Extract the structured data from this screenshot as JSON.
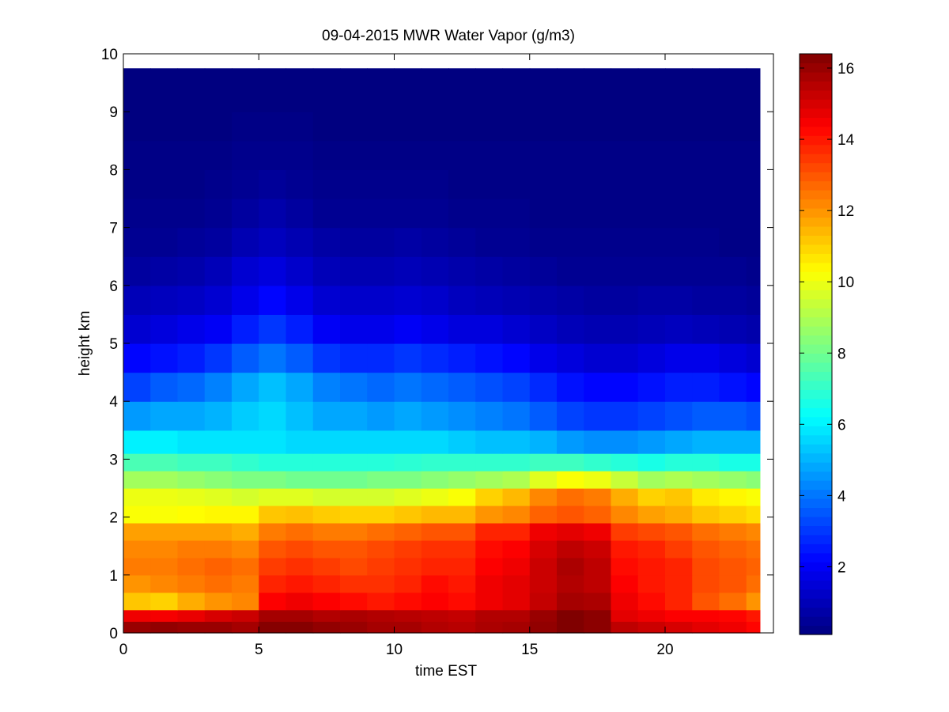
{
  "chart_data": {
    "type": "heatmap",
    "title": "09-04-2015 MWR Water Vapor (g/m3)",
    "xlabel": "time EST",
    "ylabel": "height km",
    "xlim": [
      0,
      24
    ],
    "ylim": [
      0,
      10
    ],
    "x_ticks": [
      0,
      5,
      10,
      15,
      20
    ],
    "y_ticks": [
      0,
      1,
      2,
      3,
      4,
      5,
      6,
      7,
      8,
      9,
      10
    ],
    "colorbar": {
      "clim": [
        0.1,
        16.4
      ],
      "ticks": [
        2,
        4,
        6,
        8,
        10,
        12,
        14,
        16
      ],
      "colormap": "jet"
    },
    "time_start": 0,
    "time_step": 1,
    "time_count": 24,
    "time_end": 23.5,
    "height_max": 9.75,
    "grid": false,
    "profiles": [
      {
        "height": 0.0,
        "values": [
          16.0,
          16.1,
          16.0,
          16.0,
          15.8,
          16.3,
          16.3,
          16.1,
          16.0,
          15.8,
          15.8,
          15.6,
          15.5,
          15.7,
          15.8,
          16.1,
          16.4,
          16.2,
          15.4,
          15.2,
          15.0,
          14.8,
          14.6,
          14.3
        ]
      },
      {
        "height": 0.2,
        "values": [
          14.6,
          14.5,
          14.7,
          15.0,
          15.2,
          15.8,
          15.8,
          15.6,
          15.7,
          15.6,
          15.5,
          15.4,
          15.3,
          15.6,
          15.6,
          16.0,
          16.4,
          16.2,
          14.8,
          14.6,
          14.4,
          14.4,
          14.3,
          14.0
        ]
      },
      {
        "height": 0.4,
        "values": [
          11.2,
          11.0,
          11.6,
          12.0,
          12.2,
          14.4,
          14.6,
          14.4,
          14.2,
          14.0,
          14.2,
          14.4,
          14.2,
          14.6,
          14.8,
          15.3,
          15.8,
          15.7,
          14.6,
          14.2,
          13.8,
          13.0,
          12.6,
          12.0
        ]
      },
      {
        "height": 0.7,
        "values": [
          12.0,
          12.2,
          12.4,
          12.6,
          12.4,
          13.8,
          14.0,
          13.8,
          13.6,
          13.6,
          13.8,
          14.2,
          14.0,
          14.6,
          14.8,
          15.2,
          15.6,
          15.4,
          14.4,
          14.0,
          13.8,
          13.2,
          13.0,
          12.6
        ]
      },
      {
        "height": 1.0,
        "values": [
          12.4,
          12.4,
          12.6,
          12.8,
          12.6,
          13.4,
          13.6,
          13.4,
          13.2,
          13.4,
          13.6,
          13.8,
          13.8,
          14.4,
          14.6,
          15.2,
          15.7,
          15.4,
          14.2,
          14.0,
          13.8,
          13.2,
          13.0,
          12.8
        ]
      },
      {
        "height": 1.3,
        "values": [
          12.2,
          12.2,
          12.4,
          12.4,
          12.2,
          13.0,
          13.2,
          13.0,
          13.0,
          13.2,
          13.4,
          13.6,
          13.6,
          14.2,
          14.4,
          15.0,
          15.4,
          15.2,
          14.0,
          13.8,
          13.4,
          13.0,
          12.8,
          12.6
        ]
      },
      {
        "height": 1.6,
        "values": [
          11.8,
          11.8,
          11.8,
          11.8,
          11.6,
          12.4,
          12.6,
          12.4,
          12.4,
          12.6,
          12.8,
          13.0,
          13.0,
          13.8,
          13.8,
          14.6,
          14.8,
          14.6,
          13.4,
          13.2,
          13.0,
          12.6,
          12.4,
          12.2
        ]
      },
      {
        "height": 1.9,
        "values": [
          10.2,
          10.2,
          10.3,
          10.4,
          10.4,
          11.2,
          11.3,
          11.1,
          11.0,
          11.0,
          11.2,
          11.4,
          11.4,
          12.0,
          12.2,
          12.8,
          13.0,
          12.8,
          12.2,
          11.8,
          11.6,
          11.2,
          11.0,
          10.8
        ]
      },
      {
        "height": 2.2,
        "values": [
          10.0,
          10.0,
          9.9,
          9.8,
          9.6,
          9.8,
          9.8,
          9.6,
          9.6,
          9.6,
          9.8,
          10.0,
          10.2,
          11.0,
          11.4,
          12.2,
          12.6,
          12.4,
          11.6,
          11.0,
          11.2,
          10.6,
          10.4,
          10.2
        ]
      },
      {
        "height": 2.5,
        "values": [
          8.8,
          8.8,
          8.6,
          8.4,
          8.2,
          8.2,
          8.0,
          8.0,
          8.0,
          8.2,
          8.2,
          8.4,
          8.6,
          8.8,
          9.0,
          9.8,
          10.2,
          10.0,
          9.4,
          8.8,
          9.0,
          8.8,
          8.6,
          8.4
        ]
      },
      {
        "height": 2.8,
        "values": [
          7.4,
          7.4,
          7.2,
          7.2,
          7.0,
          6.8,
          6.8,
          6.8,
          6.8,
          6.8,
          6.9,
          7.0,
          7.0,
          7.0,
          7.0,
          7.2,
          7.2,
          7.0,
          6.8,
          6.6,
          6.8,
          6.8,
          6.6,
          6.6
        ]
      },
      {
        "height": 3.1,
        "values": [
          6.0,
          6.0,
          5.8,
          5.8,
          5.8,
          5.8,
          5.6,
          5.6,
          5.6,
          5.6,
          5.6,
          5.6,
          5.4,
          5.2,
          5.2,
          5.0,
          4.6,
          4.4,
          4.4,
          4.6,
          4.8,
          5.0,
          5.0,
          5.0
        ]
      },
      {
        "height": 3.5,
        "values": [
          4.6,
          4.8,
          4.8,
          5.0,
          5.4,
          5.6,
          5.2,
          4.8,
          4.8,
          4.6,
          4.8,
          4.6,
          4.4,
          4.2,
          4.0,
          3.6,
          3.2,
          3.0,
          3.0,
          3.2,
          3.4,
          3.6,
          3.6,
          3.4
        ]
      },
      {
        "height": 4.0,
        "values": [
          3.2,
          3.6,
          3.8,
          4.2,
          4.8,
          5.2,
          4.8,
          4.2,
          4.0,
          3.8,
          4.0,
          3.8,
          3.6,
          3.4,
          3.2,
          2.8,
          2.4,
          2.2,
          2.2,
          2.4,
          2.6,
          2.6,
          2.4,
          2.2
        ]
      },
      {
        "height": 4.5,
        "values": [
          2.2,
          2.4,
          2.6,
          3.0,
          3.6,
          4.0,
          3.6,
          3.0,
          2.8,
          2.8,
          3.0,
          2.8,
          2.6,
          2.4,
          2.2,
          1.8,
          1.6,
          1.4,
          1.4,
          1.6,
          1.8,
          1.8,
          1.6,
          1.4
        ]
      },
      {
        "height": 5.0,
        "values": [
          1.4,
          1.6,
          1.8,
          2.0,
          2.6,
          3.0,
          2.6,
          2.0,
          1.8,
          1.8,
          2.0,
          1.8,
          1.6,
          1.6,
          1.4,
          1.2,
          1.0,
          0.9,
          0.9,
          1.0,
          1.1,
          1.0,
          0.9,
          0.8
        ]
      },
      {
        "height": 5.5,
        "values": [
          1.0,
          1.1,
          1.2,
          1.4,
          1.8,
          2.2,
          1.8,
          1.4,
          1.3,
          1.3,
          1.4,
          1.3,
          1.1,
          1.0,
          0.9,
          0.8,
          0.7,
          0.6,
          0.6,
          0.7,
          0.7,
          0.6,
          0.6,
          0.5
        ]
      },
      {
        "height": 6.0,
        "values": [
          0.6,
          0.7,
          0.8,
          1.0,
          1.4,
          1.6,
          1.3,
          1.0,
          0.9,
          0.9,
          1.0,
          0.9,
          0.8,
          0.7,
          0.6,
          0.5,
          0.4,
          0.4,
          0.4,
          0.4,
          0.4,
          0.4,
          0.4,
          0.3
        ]
      },
      {
        "height": 6.5,
        "values": [
          0.4,
          0.4,
          0.5,
          0.6,
          0.9,
          1.1,
          0.9,
          0.7,
          0.6,
          0.6,
          0.7,
          0.6,
          0.5,
          0.4,
          0.4,
          0.3,
          0.3,
          0.3,
          0.3,
          0.3,
          0.3,
          0.3,
          0.2,
          0.2
        ]
      },
      {
        "height": 7.0,
        "values": [
          0.3,
          0.3,
          0.3,
          0.4,
          0.6,
          0.8,
          0.6,
          0.4,
          0.4,
          0.4,
          0.4,
          0.4,
          0.3,
          0.3,
          0.3,
          0.2,
          0.2,
          0.2,
          0.2,
          0.2,
          0.2,
          0.2,
          0.2,
          0.2
        ]
      },
      {
        "height": 7.5,
        "values": [
          0.2,
          0.2,
          0.2,
          0.3,
          0.4,
          0.5,
          0.4,
          0.3,
          0.3,
          0.3,
          0.3,
          0.3,
          0.2,
          0.2,
          0.2,
          0.2,
          0.2,
          0.2,
          0.2,
          0.2,
          0.2,
          0.2,
          0.2,
          0.2
        ]
      },
      {
        "height": 8.0,
        "values": [
          0.2,
          0.2,
          0.2,
          0.2,
          0.3,
          0.3,
          0.3,
          0.2,
          0.2,
          0.2,
          0.2,
          0.2,
          0.2,
          0.2,
          0.2,
          0.2,
          0.2,
          0.2,
          0.2,
          0.2,
          0.2,
          0.2,
          0.2,
          0.2
        ]
      },
      {
        "height": 8.5,
        "values": [
          0.1,
          0.1,
          0.1,
          0.1,
          0.2,
          0.2,
          0.2,
          0.1,
          0.1,
          0.1,
          0.1,
          0.1,
          0.1,
          0.1,
          0.1,
          0.1,
          0.1,
          0.1,
          0.1,
          0.1,
          0.1,
          0.1,
          0.1,
          0.1
        ]
      },
      {
        "height": 9.0,
        "values": [
          0.1,
          0.1,
          0.1,
          0.1,
          0.1,
          0.1,
          0.1,
          0.1,
          0.1,
          0.1,
          0.1,
          0.1,
          0.1,
          0.1,
          0.1,
          0.1,
          0.1,
          0.1,
          0.1,
          0.1,
          0.1,
          0.1,
          0.1,
          0.1
        ]
      },
      {
        "height": 9.5,
        "values": [
          0.1,
          0.1,
          0.1,
          0.1,
          0.1,
          0.1,
          0.1,
          0.1,
          0.1,
          0.1,
          0.1,
          0.1,
          0.1,
          0.1,
          0.1,
          0.1,
          0.1,
          0.1,
          0.1,
          0.1,
          0.1,
          0.1,
          0.1,
          0.1
        ]
      }
    ]
  }
}
